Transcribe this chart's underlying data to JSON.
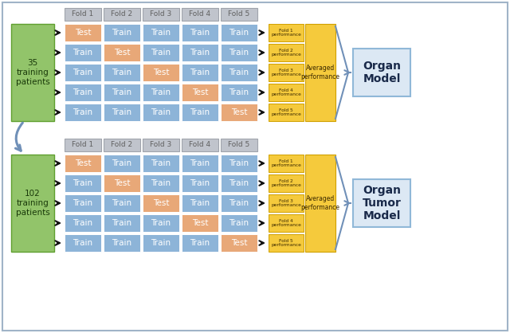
{
  "background_color": "#ffffff",
  "outer_border_color": "#a0b4c8",
  "fold_labels": [
    "Fold 1",
    "Fold 2",
    "Fold 3",
    "Fold 4",
    "Fold 5"
  ],
  "train_color": "#8db4d8",
  "test_color": "#e8a878",
  "perf_color": "#f5ca3c",
  "avg_color": "#f5ca3c",
  "green_color": "#92c46a",
  "gray_fold_color": "#c0c4cc",
  "gray_fold_text": "#606060",
  "model_box_color": "#dce8f4",
  "model_box_border": "#90b8d8",
  "section1_label": "35\ntraining\npatients",
  "section2_label": "102\ntraining\npatients",
  "model1_label": "Organ\nModel",
  "model2_label": "Organ\nTumor\nModel",
  "avg_label1": "Averaged\nperformance",
  "avg_label2": "Averaged\nperformance",
  "perf_labels": [
    "Fold 1\nperformance",
    "Fold 2\nperformance",
    "Fold 3\nperformance",
    "Fold 4\nperformance",
    "Fold 5\nperformance"
  ]
}
